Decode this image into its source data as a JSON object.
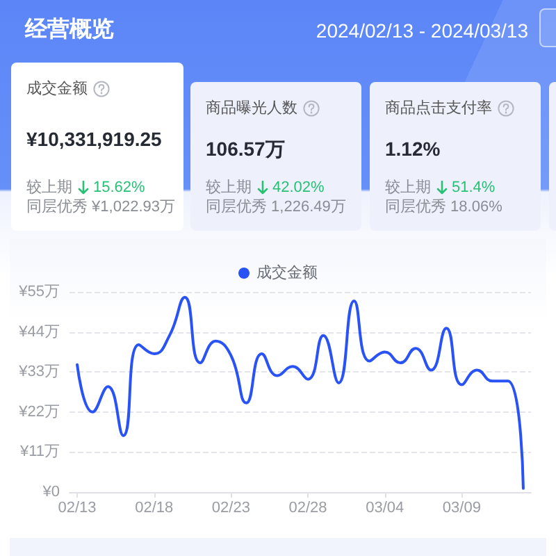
{
  "chart_data": {
    "type": "line",
    "title": "经营概览",
    "subtitle": "2024/02/13 - 2024/03/13",
    "annotations": [
      "成交金额",
      "¥10,331,919.25",
      "较上期",
      "15.62%",
      "同层优秀 ¥1,022.93万",
      "商品曝光人数",
      "106.57万",
      "较上期",
      "42.02%",
      "同层优秀 1,226.49万",
      "商品点击支付率",
      "1.12%",
      "较上期",
      "51.4%",
      "同层优秀 18.06%"
    ],
    "categories": [
      "02/13",
      null,
      null,
      null,
      null,
      "02/18",
      null,
      null,
      null,
      null,
      "02/23",
      null,
      null,
      null,
      null,
      "02/28",
      null,
      null,
      null,
      null,
      "03/04",
      null,
      null,
      null,
      null,
      "03/09",
      null,
      null,
      null,
      null
    ],
    "series": [
      {
        "name": "成交金额",
        "color": "#2953f5",
        "values": [
          35,
          22,
          29,
          15.5,
          40.5,
          38,
          43,
          53.5,
          35.5,
          41.5,
          37.5,
          24.5,
          38,
          32,
          34.5,
          31,
          43,
          30,
          52.5,
          36,
          38.5,
          35.5,
          39.5,
          33.5,
          45,
          29.5,
          33.5,
          30.5,
          30.5,
          1
        ]
      }
    ],
    "ylim": [
      0,
      55
    ],
    "yticks": [
      {
        "value": 0,
        "label": "¥0"
      },
      {
        "value": 11,
        "label": "¥11万"
      },
      {
        "value": 22,
        "label": "¥22万"
      },
      {
        "value": 33,
        "label": "¥33万"
      },
      {
        "value": 44,
        "label": "¥44万"
      },
      {
        "value": 55,
        "label": "¥55万"
      }
    ],
    "grid": "y",
    "legend": "top",
    "marker": "none",
    "line_style": "solid"
  }
}
